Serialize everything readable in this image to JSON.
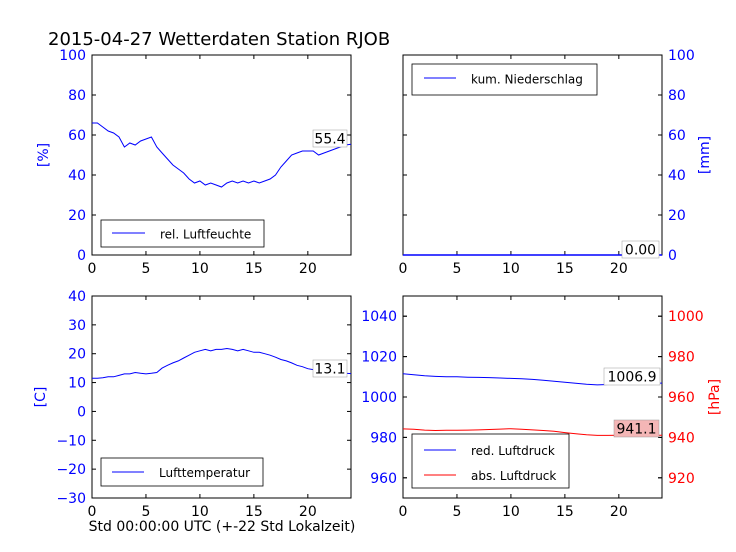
{
  "title": "2015-04-27 Wetterdaten Station RJOB",
  "xlabel": "Std 00:00:00 UTC (+-22 Std Lokalzeit)",
  "colors": {
    "blue": "#0000ff",
    "red": "#ff0000",
    "last_red_bg": "#f4b6b6"
  },
  "chart_data": [
    {
      "type": "line",
      "name": "humidity",
      "ylabel": "[%]",
      "xlim": [
        0,
        24
      ],
      "ylim": [
        0,
        100
      ],
      "xticks": [
        0,
        5,
        10,
        15,
        20
      ],
      "yticks": [
        0,
        20,
        40,
        60,
        80,
        100
      ],
      "legend": "lower-left",
      "series": [
        {
          "name": "rel. Luftfeuchte",
          "color": "#0000ff",
          "x": [
            0,
            0.5,
            1,
            1.5,
            2,
            2.5,
            3,
            3.5,
            4,
            4.5,
            5,
            5.5,
            6,
            6.5,
            7,
            7.5,
            8,
            8.5,
            9,
            9.5,
            10,
            10.5,
            11,
            11.5,
            12,
            12.5,
            13,
            13.5,
            14,
            14.5,
            15,
            15.5,
            16,
            16.5,
            17,
            17.5,
            18,
            18.5,
            19,
            19.5,
            20,
            20.5,
            21,
            21.5,
            22,
            22.5,
            23,
            23.5,
            24
          ],
          "y": [
            66,
            66,
            64,
            62,
            61,
            59,
            54,
            56,
            55,
            57,
            58,
            59,
            54,
            51,
            48,
            45,
            43,
            41,
            38,
            36,
            37,
            35,
            36,
            35,
            34,
            36,
            37,
            36,
            37,
            36,
            37,
            36,
            37,
            38,
            40,
            44,
            47,
            50,
            51,
            52,
            52,
            52,
            50,
            51,
            52,
            53,
            54,
            55,
            55.4
          ]
        }
      ],
      "last_label": "55.4"
    },
    {
      "type": "line",
      "name": "precipitation",
      "ylabel": "[mm]",
      "xlim": [
        0,
        24
      ],
      "ylim": [
        0,
        100
      ],
      "xticks": [
        0,
        5,
        10,
        15,
        20
      ],
      "yticks": [
        0,
        20,
        40,
        60,
        80,
        100
      ],
      "legend": "top-left",
      "series": [
        {
          "name": "kum. Niederschlag",
          "color": "#0000ff",
          "x": [
            0,
            24
          ],
          "y": [
            0,
            0
          ]
        }
      ],
      "last_label": "0.00"
    },
    {
      "type": "line",
      "name": "temperature",
      "ylabel": "[C]",
      "xlim": [
        0,
        24
      ],
      "ylim": [
        -30,
        40
      ],
      "xticks": [
        0,
        5,
        10,
        15,
        20
      ],
      "yticks": [
        -30,
        -20,
        -10,
        0,
        10,
        20,
        30,
        40
      ],
      "legend": "lower-left",
      "series": [
        {
          "name": "Lufttemperatur",
          "color": "#0000ff",
          "x": [
            0,
            0.5,
            1,
            1.5,
            2,
            2.5,
            3,
            3.5,
            4,
            4.5,
            5,
            5.5,
            6,
            6.5,
            7,
            7.5,
            8,
            8.5,
            9,
            9.5,
            10,
            10.5,
            11,
            11.5,
            12,
            12.5,
            13,
            13.5,
            14,
            14.5,
            15,
            15.5,
            16,
            16.5,
            17,
            17.5,
            18,
            18.5,
            19,
            19.5,
            20,
            20.5,
            21,
            21.5,
            22,
            22.5,
            23,
            23.5,
            24
          ],
          "y": [
            11.5,
            11.5,
            11.7,
            12,
            12,
            12.5,
            13,
            13,
            13.5,
            13.2,
            13,
            13.2,
            13.5,
            15,
            16,
            16.8,
            17.5,
            18.5,
            19.5,
            20.5,
            21,
            21.5,
            21,
            21.5,
            21.5,
            21.8,
            21.5,
            21,
            21.5,
            21,
            20.5,
            20.5,
            20,
            19.5,
            18.8,
            18,
            17.5,
            16.8,
            16,
            15.5,
            14.8,
            14.5,
            14.2,
            14,
            13.8,
            13.5,
            13.3,
            13.2,
            13.1
          ]
        }
      ],
      "last_label": "13.1"
    },
    {
      "type": "line",
      "name": "pressure",
      "ylabel_right": "[hPa]",
      "xlim": [
        0,
        24
      ],
      "ylim_left": [
        950,
        1050
      ],
      "ylim_right": [
        910,
        1010
      ],
      "xticks": [
        0,
        5,
        10,
        15,
        20
      ],
      "yticks_left": [
        960,
        980,
        1000,
        1020,
        1040
      ],
      "yticks_right": [
        920,
        940,
        960,
        980,
        1000
      ],
      "legend": "lower-left",
      "series": [
        {
          "name": "red. Luftdruck",
          "color": "#0000ff",
          "axis": "left",
          "x": [
            0,
            1,
            2,
            3,
            4,
            5,
            6,
            7,
            8,
            9,
            10,
            11,
            12,
            13,
            14,
            15,
            16,
            17,
            18,
            19,
            20,
            21,
            22,
            23,
            24
          ],
          "y": [
            1011.5,
            1011,
            1010.5,
            1010.2,
            1010,
            1010,
            1009.8,
            1009.7,
            1009.6,
            1009.4,
            1009.2,
            1009,
            1008.7,
            1008.3,
            1007.8,
            1007.3,
            1006.8,
            1006.3,
            1006,
            1006.2,
            1006.5,
            1006.7,
            1006.8,
            1006.9,
            1006.9
          ]
        },
        {
          "name": "abs. Luftdruck",
          "color": "#ff0000",
          "axis": "right",
          "x": [
            0,
            1,
            2,
            3,
            4,
            5,
            6,
            7,
            8,
            9,
            10,
            11,
            12,
            13,
            14,
            15,
            16,
            17,
            18,
            19,
            20,
            21,
            22,
            23,
            24
          ],
          "y": [
            944.2,
            944,
            943.6,
            943.4,
            943.5,
            943.5,
            943.6,
            943.7,
            943.9,
            944.1,
            944.3,
            944,
            943.7,
            943.4,
            943,
            942.4,
            941.8,
            941.3,
            941,
            941,
            941.1,
            941.1,
            941.1,
            941.1,
            941.1
          ]
        }
      ],
      "last_label_left": "1006.9",
      "last_label_right": "941.1"
    }
  ]
}
